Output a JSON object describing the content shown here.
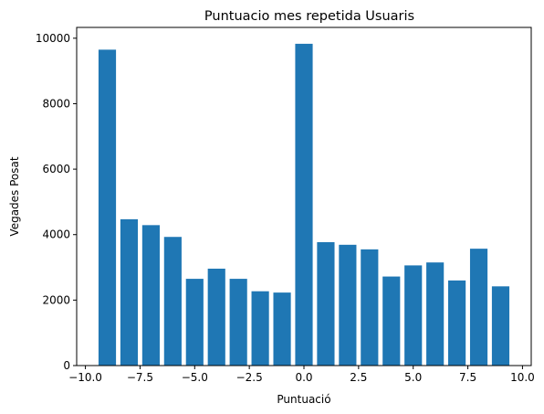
{
  "chart_data": {
    "type": "bar",
    "title": "Puntuacio mes repetida Usuaris",
    "xlabel": "Puntuació",
    "ylabel": "Vegades Posat",
    "xlim": [
      -10.4,
      10.4
    ],
    "ylim": [
      0,
      10330
    ],
    "xticks": [
      -10.0,
      -7.5,
      -5.0,
      -2.5,
      0.0,
      2.5,
      5.0,
      7.5,
      10.0
    ],
    "xtick_labels": [
      "−10.0",
      "−7.5",
      "−5.0",
      "−2.5",
      "0.0",
      "2.5",
      "5.0",
      "7.5",
      "10.0"
    ],
    "yticks": [
      0,
      2000,
      4000,
      6000,
      8000,
      10000
    ],
    "ytick_labels": [
      "0",
      "2000",
      "4000",
      "6000",
      "8000",
      "10000"
    ],
    "bar_width": 0.8,
    "x": [
      -9,
      -8,
      -7,
      -6,
      -5,
      -4,
      -3,
      -2,
      -1,
      0,
      1,
      2,
      3,
      4,
      5,
      6,
      7,
      8,
      9
    ],
    "values": [
      9650,
      4470,
      4290,
      3930,
      2650,
      2960,
      2650,
      2270,
      2230,
      9830,
      3770,
      3690,
      3550,
      2720,
      3060,
      3150,
      2600,
      3570,
      2420
    ],
    "bar_color": "#1f77b4",
    "grid": false,
    "legend": "none"
  }
}
